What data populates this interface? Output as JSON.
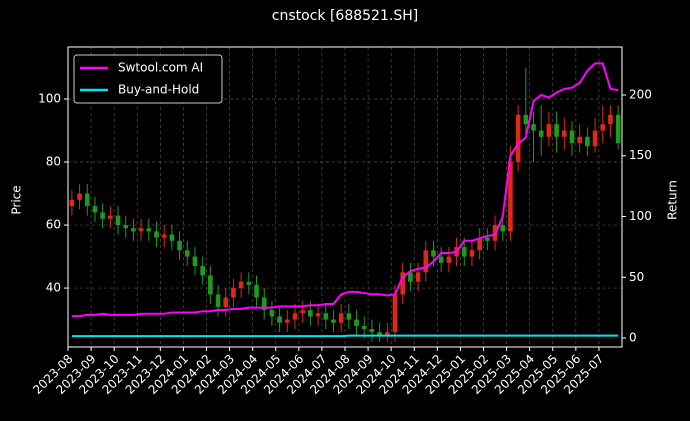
{
  "chart_data": {
    "type": "candlestick",
    "title": "cnstock [688521.SH]",
    "ylabel": "Price",
    "y2label": "Return",
    "categories": [
      "2023-08",
      null,
      null,
      "2023-09",
      null,
      null,
      "2023-10",
      null,
      null,
      "2023-11",
      null,
      null,
      "2023-12",
      null,
      null,
      "2024-01",
      null,
      null,
      "2024-02",
      null,
      null,
      "2024-03",
      null,
      null,
      "2024-04",
      null,
      null,
      "2024-05",
      null,
      null,
      "2024-06",
      null,
      null,
      "2024-07",
      null,
      null,
      "2024-08",
      null,
      null,
      "2024-09",
      null,
      null,
      "2024-10",
      null,
      null,
      "2024-11",
      null,
      null,
      "2024-12",
      null,
      null,
      "2025-01",
      null,
      null,
      "2025-02",
      null,
      null,
      "2025-03",
      null,
      null,
      "2025-04",
      null,
      null,
      "2025-05",
      null,
      null,
      "2025-06",
      null,
      null,
      "2025-07",
      null,
      null
    ],
    "open": [
      66,
      68,
      70,
      66,
      64,
      62,
      63,
      60,
      59,
      58,
      59,
      58,
      56,
      57,
      55,
      52,
      50,
      47,
      44,
      38,
      34,
      37,
      40,
      42,
      41,
      37,
      33,
      31,
      29,
      30,
      32,
      33,
      31,
      32,
      30,
      29,
      32,
      30,
      28,
      27,
      26,
      25,
      26,
      38,
      45,
      42,
      45,
      52,
      50,
      48,
      50,
      53,
      50,
      52,
      56,
      55,
      60,
      58,
      80,
      95,
      92,
      90,
      88,
      92,
      88,
      90,
      86,
      88,
      85,
      90,
      92,
      95
    ],
    "high": [
      71,
      73,
      73,
      69,
      67,
      66,
      66,
      63,
      62,
      62,
      62,
      61,
      60,
      60,
      58,
      55,
      53,
      50,
      47,
      41,
      40,
      43,
      45,
      45,
      44,
      40,
      36,
      34,
      33,
      35,
      36,
      36,
      35,
      35,
      33,
      35,
      35,
      33,
      31,
      30,
      29,
      29,
      41,
      48,
      48,
      48,
      55,
      55,
      53,
      53,
      56,
      56,
      55,
      59,
      59,
      63,
      63,
      85,
      98,
      110,
      96,
      98,
      96,
      96,
      94,
      93,
      92,
      91,
      94,
      98,
      98,
      98
    ],
    "low": [
      63,
      65,
      63,
      61,
      59,
      59,
      57,
      56,
      55,
      55,
      55,
      53,
      53,
      52,
      49,
      47,
      44,
      41,
      35,
      31,
      31,
      34,
      37,
      38,
      34,
      30,
      28,
      26,
      26,
      27,
      29,
      28,
      28,
      27,
      26,
      26,
      27,
      25,
      24,
      23,
      23,
      23,
      23,
      35,
      39,
      39,
      42,
      47,
      45,
      45,
      47,
      47,
      47,
      49,
      52,
      52,
      55,
      55,
      77,
      89,
      80,
      82,
      85,
      83,
      84,
      82,
      83,
      82,
      83,
      86,
      88,
      84
    ],
    "close": [
      68,
      70,
      66,
      64,
      62,
      63,
      60,
      59,
      58,
      59,
      58,
      56,
      57,
      55,
      52,
      50,
      47,
      44,
      38,
      34,
      37,
      40,
      42,
      41,
      37,
      33,
      31,
      29,
      30,
      32,
      33,
      31,
      32,
      30,
      29,
      32,
      30,
      28,
      27,
      26,
      25,
      26,
      38,
      45,
      42,
      45,
      52,
      50,
      48,
      50,
      53,
      50,
      52,
      56,
      55,
      60,
      58,
      80,
      95,
      92,
      90,
      88,
      92,
      88,
      90,
      86,
      88,
      85,
      90,
      92,
      95,
      86
    ],
    "up_color": "#e02818",
    "down_color": "#1f9a1f",
    "series": [
      {
        "name": "Swtool.com AI",
        "color": "#ff00ff",
        "axis": "y2",
        "values": [
          18,
          18,
          19,
          19,
          20,
          19,
          19,
          19,
          19,
          20,
          20,
          20,
          20,
          21,
          21,
          21,
          21,
          22,
          22,
          23,
          23,
          24,
          24,
          25,
          25,
          25,
          25,
          26,
          26,
          26,
          26,
          27,
          27,
          28,
          28,
          36,
          38,
          38,
          37,
          36,
          36,
          35,
          36,
          50,
          55,
          57,
          58,
          63,
          70,
          70,
          71,
          80,
          80,
          82,
          84,
          85,
          100,
          150,
          160,
          165,
          195,
          200,
          198,
          202,
          205,
          206,
          210,
          220,
          226,
          226,
          205,
          204
        ]
      },
      {
        "name": "Buy-and-Hold",
        "color": "#00e5ee",
        "axis": "y2",
        "values": [
          1.5,
          1.5,
          1.5,
          1.5,
          1.5,
          1.5,
          1.5,
          1.5,
          1.5,
          1.5,
          1.5,
          1.5,
          1.5,
          1.5,
          1.5,
          1.5,
          1.5,
          1.5,
          1.5,
          1.5,
          1.5,
          1.5,
          1.5,
          1.5,
          1.5,
          1.5,
          1.5,
          1.5,
          1.5,
          1.5,
          1.5,
          1.5,
          1.5,
          1.5,
          1.5,
          1.5,
          2,
          2,
          2,
          2,
          2,
          2,
          2,
          2,
          2,
          2,
          2,
          2,
          2,
          2,
          2,
          2,
          2,
          2,
          2,
          2,
          2,
          2,
          2,
          2,
          2,
          2,
          2,
          2,
          2,
          2,
          2,
          2,
          2,
          2,
          2,
          2
        ]
      }
    ],
    "ylim": [
      21.3,
      116.5
    ],
    "yticks": [
      40,
      60,
      80,
      100
    ],
    "y2lim": [
      -7.4,
      239.5
    ],
    "y2ticks": [
      0,
      50,
      100,
      150,
      200
    ],
    "grid": true,
    "legend": "upper left"
  }
}
